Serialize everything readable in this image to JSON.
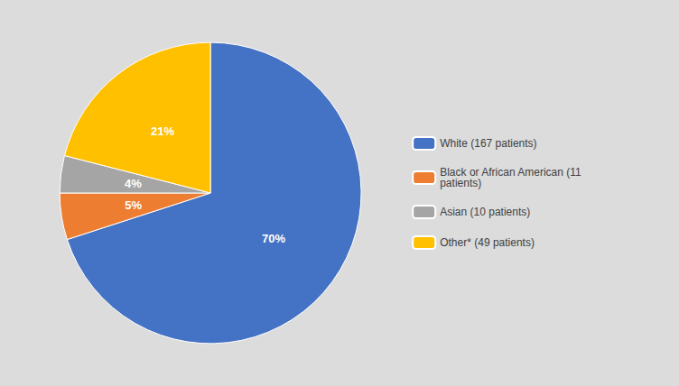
{
  "chart_data": {
    "type": "pie",
    "categories": [
      "White (167 patients)",
      "Black or African American (11\npatients)",
      "Asian (10 patients)",
      "Other* (49 patients)"
    ],
    "values": [
      70,
      5,
      4,
      21
    ],
    "value_labels": [
      "70%",
      "5%",
      "4%",
      "21%"
    ],
    "colors": [
      "#4472C4",
      "#ED7D31",
      "#A5A5A5",
      "#FFC000"
    ],
    "data_labels": true,
    "legend": "right"
  }
}
